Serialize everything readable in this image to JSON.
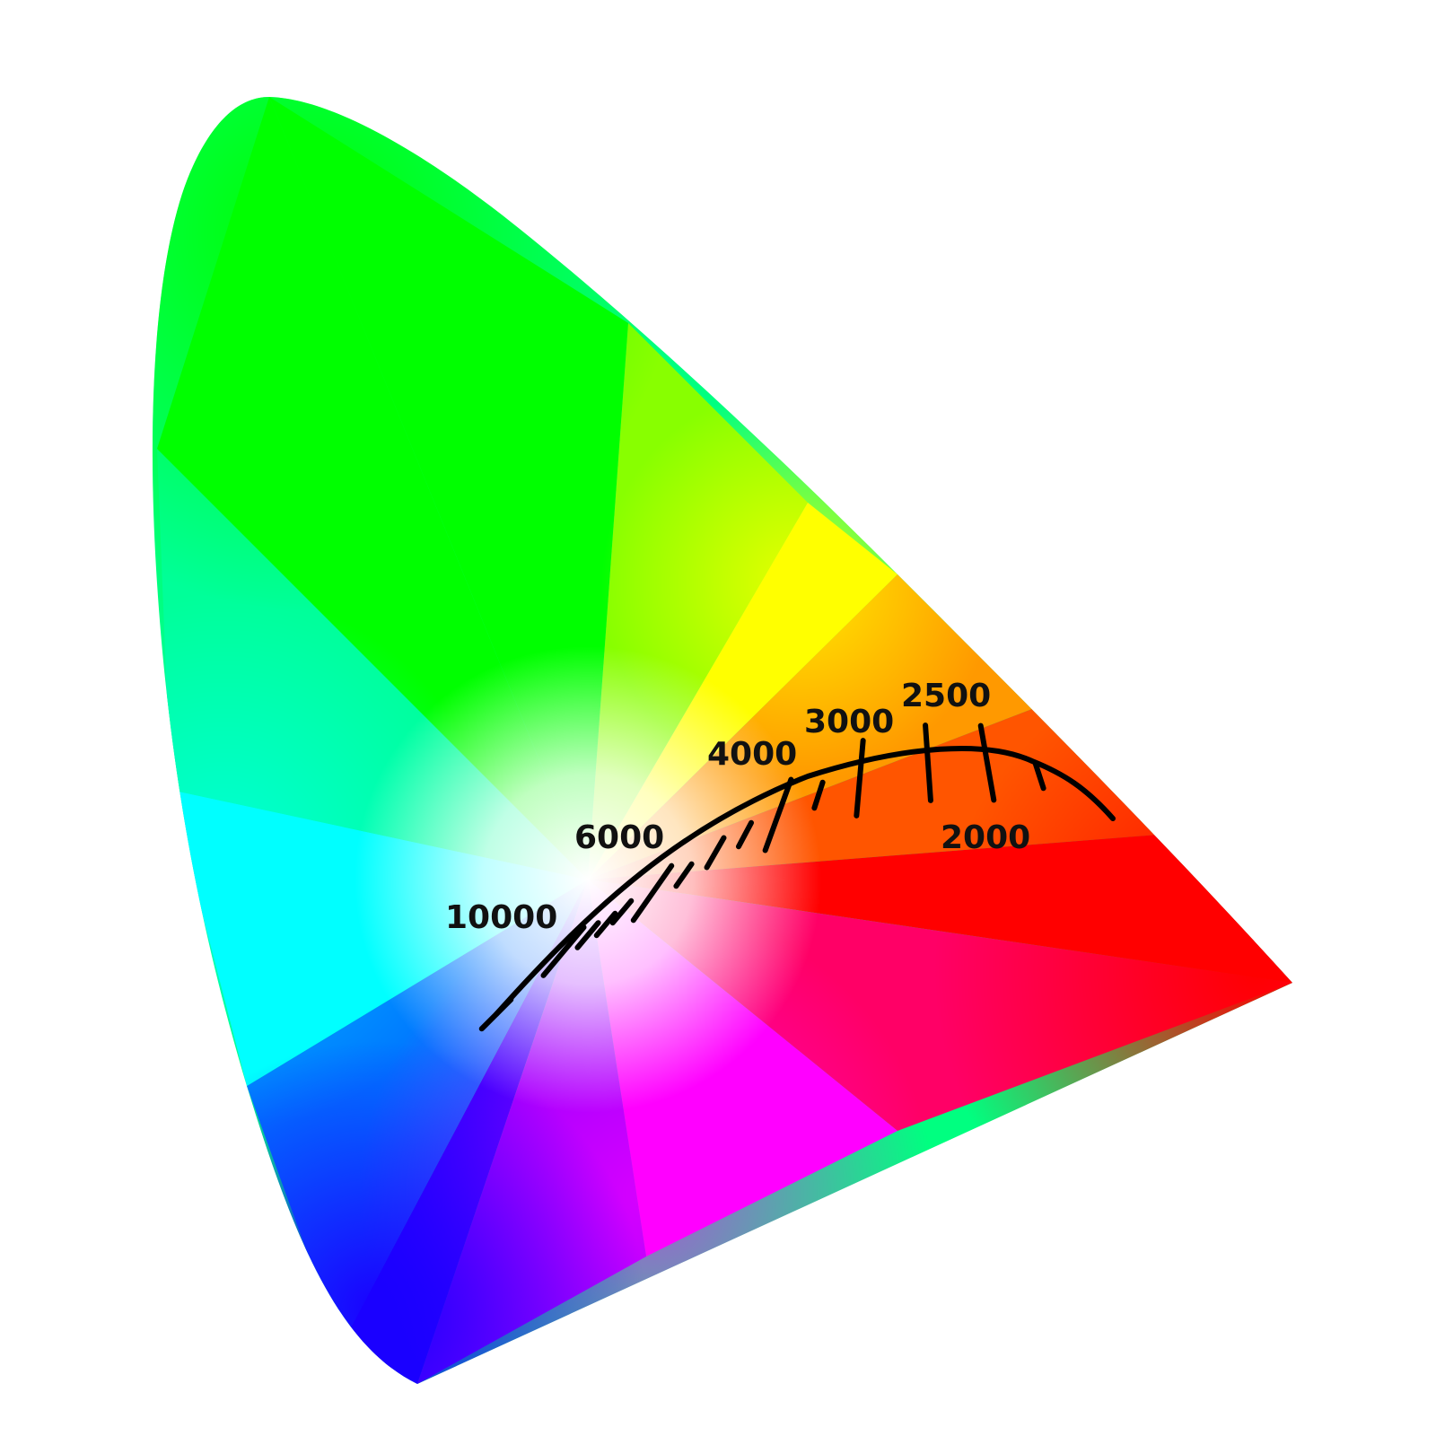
{
  "diagram": {
    "type": "cie-1931-chromaticity-gamut",
    "locus": {
      "name": "planckian-locus",
      "line_color": "#000000"
    },
    "temperature_labels": [
      {
        "kelvin": "10000"
      },
      {
        "kelvin": "6000"
      },
      {
        "kelvin": "4000"
      },
      {
        "kelvin": "3000"
      },
      {
        "kelvin": "2500"
      },
      {
        "kelvin": "2000"
      }
    ],
    "colors": {
      "green": "#00ff00",
      "yellow": "#ffff00",
      "orange": "#ff9900",
      "red": "#ff0000",
      "magenta": "#ff00ff",
      "violet": "#8800ff",
      "blue": "#1a00ff",
      "cyan": "#00ffff",
      "white_point": "#ffffff"
    }
  }
}
